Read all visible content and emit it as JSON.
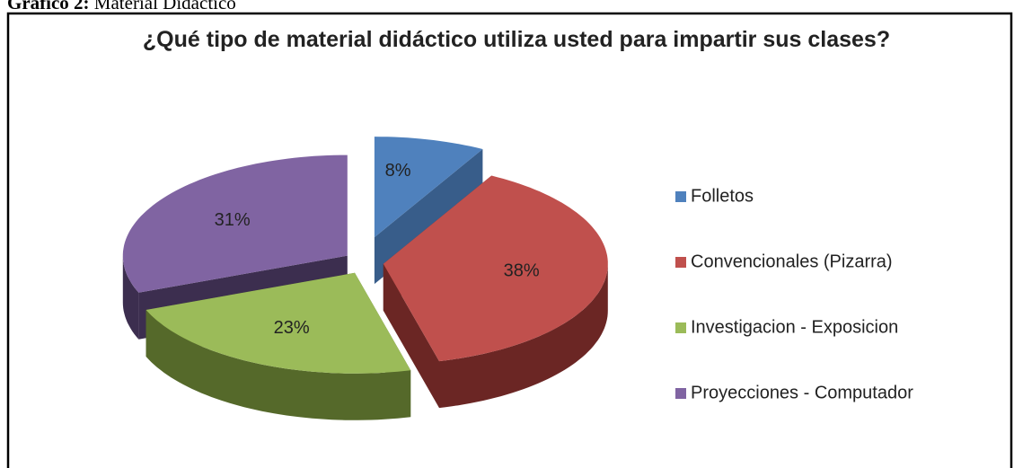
{
  "caption": {
    "label": "Gráfico 2:",
    "text": "Material Didáctico"
  },
  "chart_data": {
    "type": "pie",
    "title": "¿Qué tipo de material didáctico utiliza usted para impartir sus clases?",
    "categories": [
      "Folletos",
      "Convencionales (Pizarra)",
      "Investigacion - Exposicion",
      "Proyecciones - Computador"
    ],
    "values": [
      8,
      38,
      23,
      31
    ],
    "value_labels": [
      "8%",
      "38%",
      "23%",
      "31%"
    ],
    "colors": [
      "#4f81bd",
      "#c0504d",
      "#9bbb59",
      "#8064a2"
    ],
    "side_colors": [
      "#385d8a",
      "#6b2624",
      "#55692a",
      "#3c2e4f"
    ],
    "legend": "right",
    "three_d": true
  }
}
